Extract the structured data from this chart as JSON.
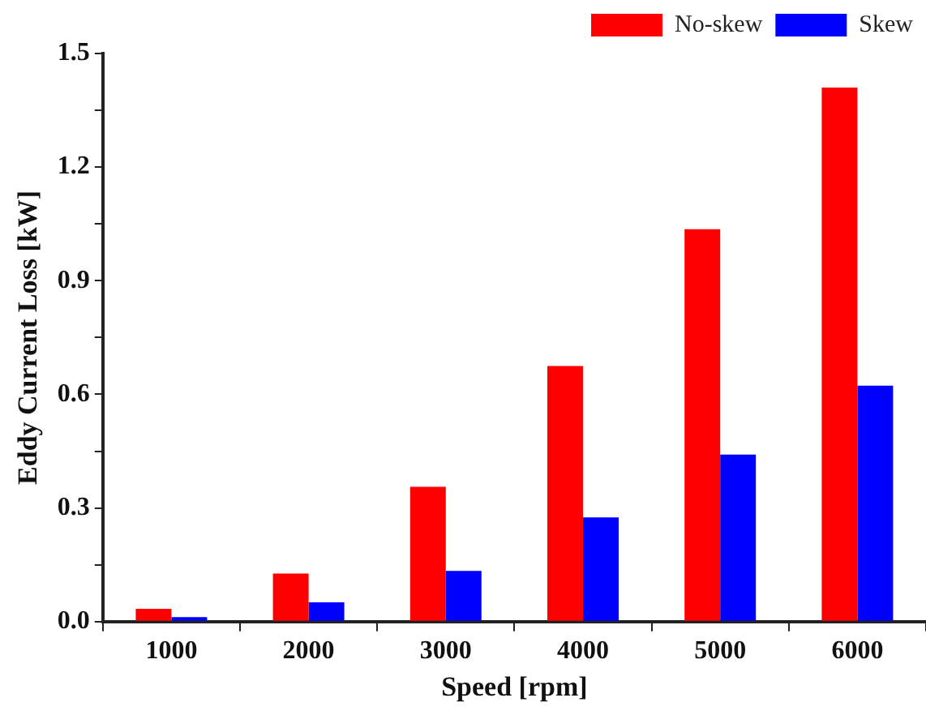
{
  "chart_data": {
    "type": "bar",
    "xlabel": "Speed [rpm]",
    "ylabel": "Eddy Current Loss [kW]",
    "categories": [
      "1000",
      "2000",
      "3000",
      "4000",
      "5000",
      "6000"
    ],
    "series": [
      {
        "name": "No-skew",
        "color": "#ff0000",
        "values": [
          0.034,
          0.127,
          0.356,
          0.675,
          1.036,
          1.41
        ]
      },
      {
        "name": "Skew",
        "color": "#0000ff",
        "values": [
          0.012,
          0.051,
          0.134,
          0.275,
          0.441,
          0.623
        ]
      }
    ],
    "ylim": [
      0,
      1.5
    ],
    "yticks": [
      {
        "value": 0,
        "label": "0.0"
      },
      {
        "value": 0.15,
        "label": null
      },
      {
        "value": 0.3,
        "label": "0.3"
      },
      {
        "value": 0.45,
        "label": null
      },
      {
        "value": 0.6,
        "label": "0.6"
      },
      {
        "value": 0.75,
        "label": null
      },
      {
        "value": 0.9,
        "label": "0.9"
      },
      {
        "value": 1.05,
        "label": null
      },
      {
        "value": 1.2,
        "label": "1.2"
      },
      {
        "value": 1.35,
        "label": null
      },
      {
        "value": 1.5,
        "label": "1.5"
      }
    ],
    "grid": false,
    "legend": "top right"
  }
}
